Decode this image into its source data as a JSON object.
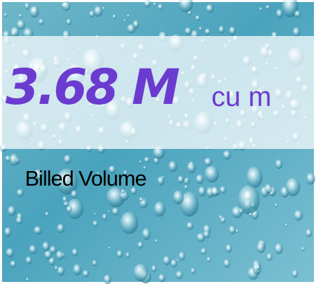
{
  "kpi": {
    "value": "3.68 M",
    "unit": "cu m",
    "label": "Billed Volume"
  }
}
